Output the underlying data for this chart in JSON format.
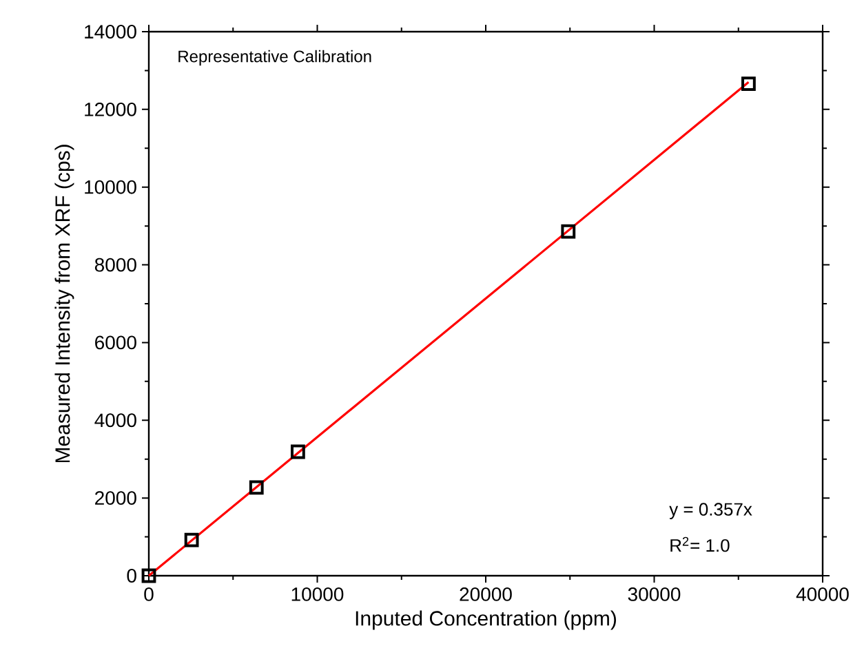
{
  "chart_data": {
    "type": "scatter",
    "xlabel": "Inputed Concentration (ppm)",
    "ylabel": "Measured Intensity from XRF (cps)",
    "series": [
      {
        "type": "line",
        "color": "#ff0000",
        "x": [
          0,
          35600
        ],
        "values": [
          0,
          12700
        ],
        "marker": "none",
        "line_style": "solid"
      },
      {
        "color": "#000000",
        "x": [
          0,
          2540,
          6390,
          8850,
          24900,
          35600
        ],
        "values": [
          0,
          920,
          2270,
          3190,
          8860,
          12660
        ],
        "marker": "square"
      }
    ],
    "xlim": [
      0,
      40000
    ],
    "xticks": [
      0,
      10000,
      20000,
      30000,
      40000
    ],
    "ylim": [
      0,
      14000
    ],
    "yticks": [
      0,
      2000,
      4000,
      6000,
      8000,
      10000,
      12000,
      14000
    ],
    "annotations": [
      "Representative Calibration",
      "y = 0.357x",
      "R$^{2}$= 1.0"
    ]
  }
}
